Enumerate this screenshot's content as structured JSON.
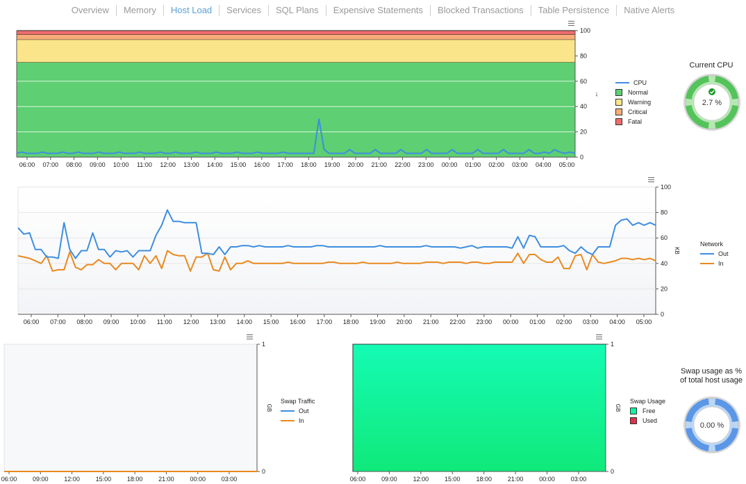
{
  "tabs": [
    "Overview",
    "Memory",
    "Host Load",
    "Services",
    "SQL Plans",
    "Expensive Statements",
    "Blocked Transactions",
    "Table Persistence",
    "Native Alerts"
  ],
  "active_tab": "Host Load",
  "colors": {
    "cpu": "#3d8ee0",
    "out": "#3d8ee0",
    "in": "#e8891e",
    "normal": "#5ecf72",
    "warning": "#fbe58a",
    "critical": "#f6ad78",
    "fatal": "#ee6c6c",
    "free": "#12f2a2",
    "used": "#e0304a",
    "tab_active": "#5a9fd4"
  },
  "cpu_legend": {
    "title": "",
    "items": [
      {
        "label": "CPU",
        "type": "line",
        "color": "#3d8ee0"
      },
      {
        "label": "Normal",
        "type": "box",
        "color": "#5ecf72"
      },
      {
        "label": "Warning",
        "type": "box",
        "color": "#fbe58a"
      },
      {
        "label": "Critical",
        "type": "box",
        "color": "#f6ad78"
      },
      {
        "label": "Fatal",
        "type": "box",
        "color": "#ee6c6c"
      }
    ]
  },
  "network_legend": {
    "title": "Network",
    "items": [
      {
        "label": "Out",
        "type": "line",
        "color": "#3d8ee0"
      },
      {
        "label": "In",
        "type": "line",
        "color": "#e8891e"
      }
    ]
  },
  "swap_traffic_legend": {
    "title": "Swap Traffic",
    "items": [
      {
        "label": "Out",
        "type": "line",
        "color": "#3d8ee0"
      },
      {
        "label": "In",
        "type": "line",
        "color": "#e8891e"
      }
    ]
  },
  "swap_usage_legend": {
    "title": "Swap Usage",
    "items": [
      {
        "label": "Free",
        "type": "box",
        "color": "#12f2a2"
      },
      {
        "label": "Used",
        "type": "box",
        "color": "#e0304a"
      }
    ]
  },
  "gauges": {
    "cpu": {
      "title": "Current CPU",
      "value_text": "2.7 %",
      "value": 2.7,
      "theme": "green"
    },
    "swap": {
      "title": "Swap usage as % of total host usage",
      "value_text": "0.00 %",
      "value": 0,
      "theme": "blue"
    }
  },
  "chart_data": [
    {
      "type": "line",
      "name": "cpu",
      "ylabel": "%",
      "ylim": [
        0,
        100
      ],
      "yticks": [
        0,
        20,
        40,
        60,
        80,
        100
      ],
      "xticks": [
        "06:00",
        "07:00",
        "08:00",
        "09:00",
        "10:00",
        "11:00",
        "12:00",
        "13:00",
        "14:00",
        "15:00",
        "16:00",
        "17:00",
        "18:00",
        "19:00",
        "20:00",
        "21:00",
        "22:00",
        "23:00",
        "00:00",
        "01:00",
        "02:00",
        "03:00",
        "04:00",
        "05:00"
      ],
      "bands": [
        {
          "name": "Normal",
          "from": 0,
          "to": 75
        },
        {
          "name": "Warning",
          "from": 75,
          "to": 93
        },
        {
          "name": "Critical",
          "from": 93,
          "to": 97
        },
        {
          "name": "Fatal",
          "from": 97,
          "to": 100
        }
      ],
      "series": [
        {
          "name": "CPU",
          "values": [
            3,
            4,
            3,
            3,
            3,
            4,
            3,
            3,
            3,
            4,
            3,
            3,
            4,
            3,
            3,
            3,
            4,
            3,
            3,
            3,
            4,
            3,
            3,
            3,
            4,
            3,
            3,
            3,
            4,
            3,
            3,
            4,
            3,
            3,
            3,
            4,
            3,
            3,
            3,
            4,
            3,
            3,
            3,
            4,
            3,
            3,
            3,
            4,
            3,
            3,
            3,
            3,
            4,
            3,
            3,
            3,
            3,
            3,
            3,
            30,
            6,
            3,
            3,
            3,
            3,
            6,
            3,
            3,
            3,
            3,
            6,
            3,
            3,
            3,
            3,
            6,
            3,
            3,
            3,
            3,
            6,
            3,
            3,
            3,
            3,
            6,
            3,
            3,
            3,
            3,
            6,
            3,
            3,
            3,
            3,
            6,
            3,
            3,
            3,
            3,
            6,
            3,
            3,
            4,
            3,
            6,
            4,
            3,
            4,
            3
          ]
        }
      ]
    },
    {
      "type": "line",
      "name": "network",
      "ylabel": "KB",
      "ylim": [
        0,
        100
      ],
      "yticks": [
        0,
        20,
        40,
        60,
        80,
        100
      ],
      "xticks": [
        "06:00",
        "07:00",
        "08:00",
        "09:00",
        "10:00",
        "11:00",
        "12:00",
        "13:00",
        "14:00",
        "15:00",
        "16:00",
        "17:00",
        "18:00",
        "19:00",
        "20:00",
        "21:00",
        "22:00",
        "23:00",
        "00:00",
        "01:00",
        "02:00",
        "03:00",
        "04:00",
        "05:00"
      ],
      "series": [
        {
          "name": "Out",
          "values": [
            68,
            63,
            64,
            51,
            51,
            45,
            45,
            44,
            72,
            51,
            44,
            50,
            50,
            64,
            51,
            51,
            45,
            50,
            49,
            50,
            45,
            50,
            50,
            50,
            62,
            70,
            82,
            73,
            73,
            72,
            72,
            72,
            48,
            48,
            47,
            53,
            47,
            53,
            53,
            54,
            54,
            53,
            54,
            53,
            53,
            53,
            53,
            54,
            53,
            53,
            53,
            53,
            54,
            54,
            53,
            53,
            53,
            53,
            53,
            53,
            53,
            53,
            53,
            54,
            53,
            53,
            53,
            53,
            53,
            53,
            53,
            54,
            53,
            53,
            53,
            53,
            53,
            52,
            53,
            54,
            52,
            53,
            53,
            53,
            53,
            53,
            52,
            61,
            52,
            62,
            61,
            53,
            53,
            53,
            53,
            54,
            50,
            48,
            53,
            49,
            47,
            53,
            53,
            53,
            70,
            74,
            75,
            70,
            72,
            70,
            72,
            70
          ]
        },
        {
          "name": "In",
          "values": [
            46,
            45,
            44,
            42,
            40,
            46,
            34,
            35,
            35,
            49,
            37,
            35,
            39,
            39,
            43,
            40,
            40,
            35,
            40,
            40,
            40,
            35,
            46,
            40,
            46,
            36,
            50,
            47,
            46,
            46,
            34,
            45,
            45,
            48,
            35,
            34,
            45,
            35,
            40,
            40,
            42,
            40,
            40,
            40,
            40,
            40,
            40,
            41,
            40,
            40,
            40,
            40,
            40,
            40,
            41,
            41,
            40,
            40,
            40,
            40,
            41,
            40,
            40,
            40,
            40,
            40,
            41,
            40,
            40,
            40,
            40,
            41,
            41,
            41,
            40,
            41,
            41,
            41,
            40,
            41,
            41,
            40,
            40,
            41,
            41,
            41,
            41,
            48,
            40,
            47,
            47,
            43,
            41,
            41,
            45,
            36,
            36,
            46,
            47,
            35,
            47,
            41,
            40,
            41,
            42,
            44,
            44,
            43,
            44,
            43,
            44,
            42
          ]
        }
      ]
    },
    {
      "type": "line",
      "name": "swap-traffic",
      "ylabel": "GB",
      "ylim": [
        0,
        1
      ],
      "yticks": [
        0,
        1
      ],
      "xticks": [
        "06:00",
        "09:00",
        "12:00",
        "15:00",
        "18:00",
        "21:00",
        "00:00",
        "03:00"
      ],
      "series": [
        {
          "name": "Out",
          "values": [
            0,
            0
          ]
        },
        {
          "name": "In",
          "values": [
            0,
            0
          ]
        }
      ]
    },
    {
      "type": "area",
      "name": "swap-usage",
      "ylabel": "GB",
      "ylim": [
        0,
        1
      ],
      "yticks": [
        0,
        1
      ],
      "xticks": [
        "06:00",
        "09:00",
        "12:00",
        "15:00",
        "18:00",
        "21:00",
        "00:00",
        "03:00"
      ],
      "series": [
        {
          "name": "Free",
          "values": [
            1,
            1
          ]
        },
        {
          "name": "Used",
          "values": [
            0,
            0
          ]
        }
      ]
    }
  ]
}
